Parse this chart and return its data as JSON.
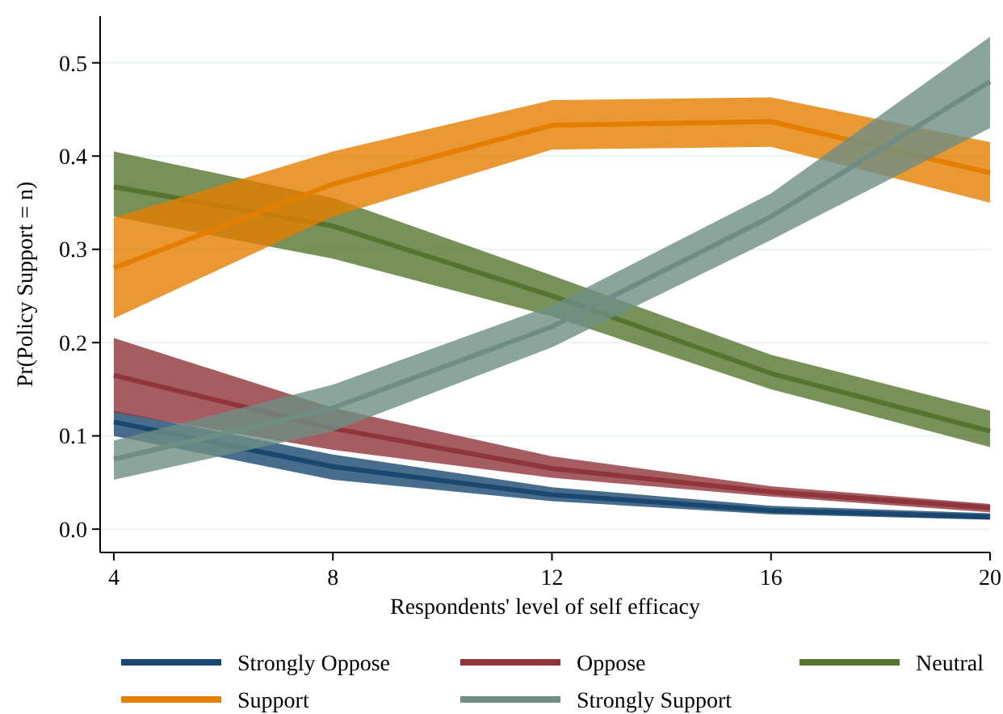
{
  "chart_data": {
    "type": "line",
    "xlabel": "Respondents' level of self efficacy",
    "ylabel": "Pr(Policy Support = n)",
    "x": [
      4,
      8,
      12,
      16,
      20
    ],
    "xlim": [
      3.75,
      20
    ],
    "xticks": [
      4,
      8,
      12,
      16,
      20
    ],
    "ylim": [
      -0.025,
      0.55
    ],
    "yticks": [
      {
        "value": 0,
        "label": "0.0"
      },
      0.1,
      0.2,
      0.3,
      0.4,
      0.5
    ],
    "grid": "y",
    "legend": "bottom",
    "marker": "none",
    "line_style": "solid",
    "series": [
      {
        "name": "Strongly Oppose",
        "color": "#1a476f",
        "values": [
          0.115,
          0.067,
          0.037,
          0.02,
          0.013
        ],
        "lower": [
          0.1,
          0.053,
          0.03,
          0.016,
          0.01
        ],
        "upper": [
          0.127,
          0.08,
          0.045,
          0.025,
          0.017
        ]
      },
      {
        "name": "Oppose",
        "color": "#90353b",
        "values": [
          0.165,
          0.108,
          0.065,
          0.04,
          0.023
        ],
        "lower": [
          0.125,
          0.085,
          0.055,
          0.035,
          0.018
        ],
        "upper": [
          0.205,
          0.13,
          0.078,
          0.046,
          0.027
        ]
      },
      {
        "name": "Neutral",
        "color": "#55752f",
        "values": [
          0.367,
          0.325,
          0.25,
          0.167,
          0.105
        ],
        "lower": [
          0.335,
          0.29,
          0.228,
          0.15,
          0.088
        ],
        "upper": [
          0.405,
          0.355,
          0.272,
          0.187,
          0.127
        ]
      },
      {
        "name": "Support",
        "color": "#e37e00",
        "values": [
          0.28,
          0.37,
          0.433,
          0.437,
          0.382
        ],
        "lower": [
          0.226,
          0.335,
          0.407,
          0.41,
          0.35
        ],
        "upper": [
          0.334,
          0.405,
          0.46,
          0.463,
          0.415
        ]
      },
      {
        "name": "Strongly Support",
        "color": "#6e8e84",
        "values": [
          0.075,
          0.13,
          0.217,
          0.335,
          0.48
        ],
        "lower": [
          0.053,
          0.105,
          0.195,
          0.31,
          0.43
        ],
        "upper": [
          0.095,
          0.155,
          0.24,
          0.36,
          0.528
        ]
      }
    ]
  }
}
